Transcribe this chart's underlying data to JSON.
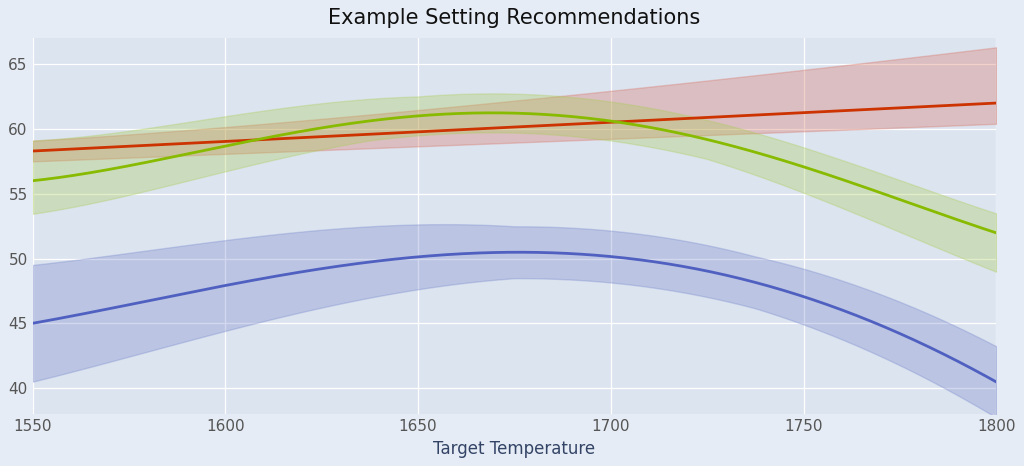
{
  "title": "Example Setting Recommendations",
  "xlabel": "Target Temperature",
  "ylabel": "",
  "x_start": 1550,
  "x_end": 1800,
  "ylim": [
    38,
    67
  ],
  "yticks": [
    40,
    45,
    50,
    55,
    60,
    65
  ],
  "xticks": [
    1550,
    1600,
    1650,
    1700,
    1750,
    1800
  ],
  "background_color": "#e6ecf5",
  "plot_bg_color": "#dce4f0",
  "grid_color": "#ffffff",
  "blue_line_color": "#5060c0",
  "blue_fill_color": "#7080c8",
  "red_line_color": "#cc3300",
  "red_fill_color": "#d87060",
  "green_line_color": "#88bb00",
  "green_fill_color": "#aacc55",
  "title_fontsize": 15,
  "xlabel_fontsize": 12,
  "tick_fontsize": 11
}
